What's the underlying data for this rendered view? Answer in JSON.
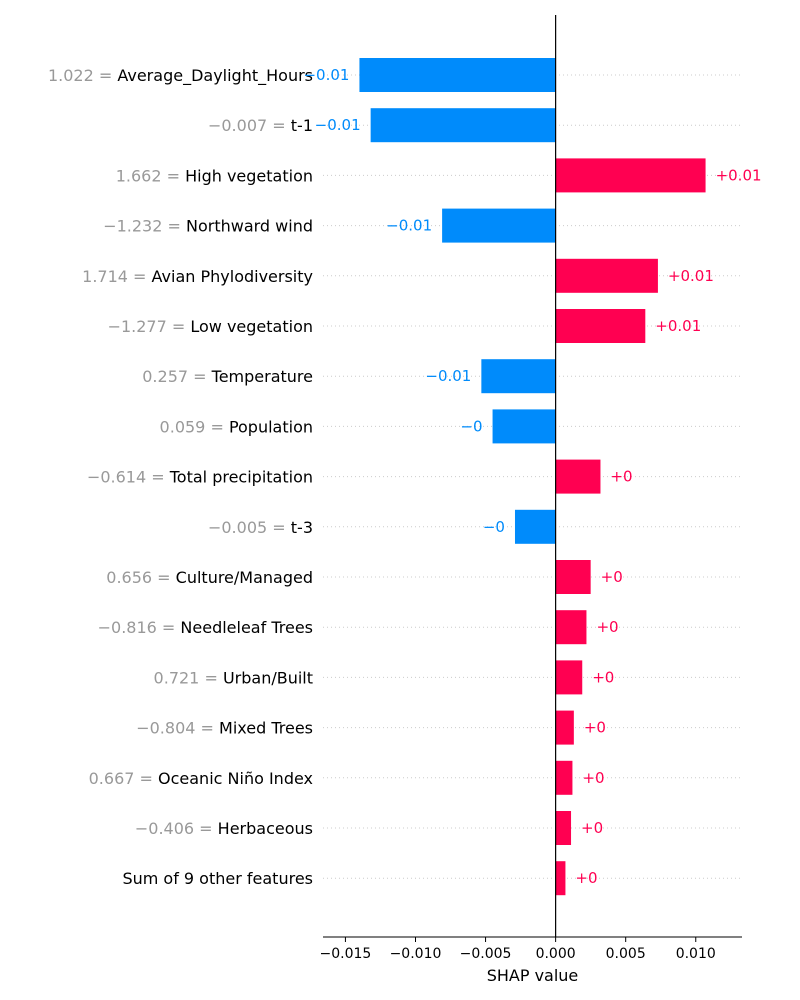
{
  "chart_data": {
    "type": "bar",
    "orientation": "horizontal",
    "xlabel": "SHAP value",
    "xlim": [
      -0.0166,
      0.0133
    ],
    "xticks": [
      -0.015,
      -0.01,
      -0.005,
      0.0,
      0.005,
      0.01
    ],
    "xtick_labels": [
      "−0.015",
      "−0.010",
      "−0.005",
      "0.000",
      "0.005",
      "0.010"
    ],
    "grid": "dotted horizontal",
    "positive_color": "#ff0051",
    "negative_color": "#008bfb",
    "features": [
      {
        "value_text": "1.022 =",
        "name": "Average_Daylight_Hours",
        "shap": -0.014,
        "label": "−0.01"
      },
      {
        "value_text": "−0.007 =",
        "name": "t-1",
        "shap": -0.0132,
        "label": "−0.01"
      },
      {
        "value_text": "1.662 =",
        "name": "High vegetation",
        "shap": 0.0107,
        "label": "+0.01"
      },
      {
        "value_text": "−1.232 =",
        "name": "Northward wind",
        "shap": -0.0081,
        "label": "−0.01"
      },
      {
        "value_text": "1.714 =",
        "name": "Avian Phylodiversity",
        "shap": 0.0073,
        "label": "+0.01"
      },
      {
        "value_text": "−1.277 =",
        "name": "Low vegetation",
        "shap": 0.0064,
        "label": "+0.01"
      },
      {
        "value_text": "0.257 =",
        "name": "Temperature",
        "shap": -0.0053,
        "label": "−0.01"
      },
      {
        "value_text": "0.059 =",
        "name": "Population",
        "shap": -0.0045,
        "label": "−0"
      },
      {
        "value_text": "−0.614 =",
        "name": "Total precipitation",
        "shap": 0.0032,
        "label": "+0"
      },
      {
        "value_text": "−0.005 =",
        "name": "t-3",
        "shap": -0.0029,
        "label": "−0"
      },
      {
        "value_text": "0.656 =",
        "name": "Culture/Managed",
        "shap": 0.0025,
        "label": "+0"
      },
      {
        "value_text": "−0.816 =",
        "name": "Needleleaf Trees",
        "shap": 0.0022,
        "label": "+0"
      },
      {
        "value_text": "0.721 =",
        "name": "Urban/Built",
        "shap": 0.0019,
        "label": "+0"
      },
      {
        "value_text": "−0.804 =",
        "name": "Mixed Trees",
        "shap": 0.0013,
        "label": "+0"
      },
      {
        "value_text": "0.667 =",
        "name": "Oceanic Niño Index",
        "shap": 0.0012,
        "label": "+0"
      },
      {
        "value_text": "−0.406 =",
        "name": "Herbaceous",
        "shap": 0.0011,
        "label": "+0"
      },
      {
        "value_text": "",
        "name": "Sum of 9 other features",
        "shap": 0.0007,
        "label": "+0"
      }
    ]
  }
}
